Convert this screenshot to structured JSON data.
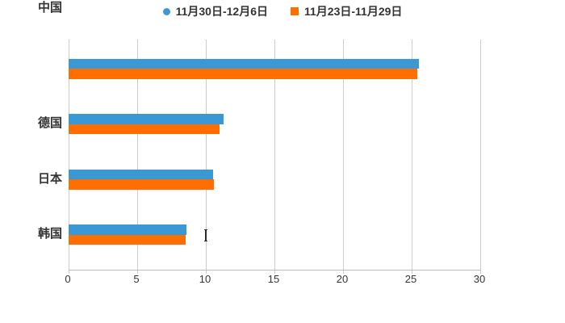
{
  "colors": {
    "background": "#ffffff",
    "grid": "#cccccc",
    "axis": "#bbbbbb",
    "text": "#333333",
    "series_blue": "#3a99d5",
    "series_orange": "#ff6e00"
  },
  "legend": {
    "items": [
      {
        "label": "11月30日-12月6日",
        "marker": "circle-icon",
        "color": "#3a99d5"
      },
      {
        "label": "11月23日-11月29日",
        "marker": "square-icon",
        "color": "#ff6e00"
      }
    ]
  },
  "chart_data": {
    "type": "bar",
    "orientation": "horizontal",
    "title": "",
    "xlabel": "",
    "ylabel": "",
    "categories": [
      "德国",
      "日本",
      "韩国",
      "中国"
    ],
    "series": [
      {
        "name": "11月30日-12月6日",
        "marker": "circle",
        "color": "#3a99d5",
        "values": [
          25.5,
          11.3,
          10.5,
          8.6
        ]
      },
      {
        "name": "11月23日-11月29日",
        "marker": "square",
        "color": "#ff6e00",
        "values": [
          25.4,
          11.0,
          10.6,
          8.5
        ]
      }
    ],
    "xlim": [
      0,
      30
    ],
    "xticks": [
      0,
      5,
      10,
      15,
      20,
      25,
      30
    ],
    "grid": true,
    "legend_position": "top"
  }
}
